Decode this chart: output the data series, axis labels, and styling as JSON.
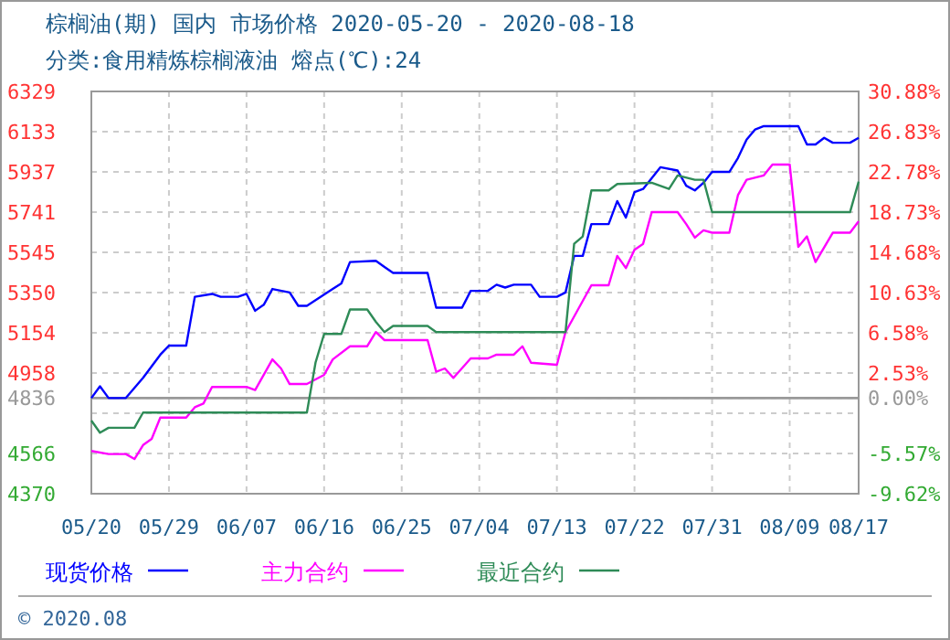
{
  "chart_data": {
    "type": "line",
    "title": "棕榈油(期) 国内 市场价格 2020-05-20 - 2020-08-18",
    "subtitle": "分类:食用精炼棕榈液油 熔点(℃):24",
    "annotations": [
      "© 2020.08"
    ],
    "xlim": [
      "2020-05-20",
      "2020-08-17"
    ],
    "xticks": [
      {
        "value": "2020-05-20",
        "label": "05/20"
      },
      {
        "value": "2020-05-29",
        "label": "05/29"
      },
      {
        "value": "2020-06-07",
        "label": "06/07"
      },
      {
        "value": "2020-06-16",
        "label": "06/16"
      },
      {
        "value": "2020-06-25",
        "label": "06/25"
      },
      {
        "value": "2020-07-04",
        "label": "07/04"
      },
      {
        "value": "2020-07-13",
        "label": "07/13"
      },
      {
        "value": "2020-07-22",
        "label": "07/22"
      },
      {
        "value": "2020-07-31",
        "label": "07/31"
      },
      {
        "value": "2020-08-09",
        "label": "08/09"
      },
      {
        "value": "2020-08-17",
        "label": "08/17"
      }
    ],
    "ylim": [
      4370,
      6329
    ],
    "yticks": [
      4370,
      4566,
      {
        "value": 4762,
        "label": null
      },
      4836,
      4958,
      5154,
      5350,
      5545,
      5741,
      5937,
      6133,
      6329
    ],
    "y2lim": [
      -9.62,
      30.88
    ],
    "y2ticks": [
      {
        "value": -9.62,
        "label": "-9.62%"
      },
      {
        "value": -5.57,
        "label": "-5.57%"
      },
      {
        "value": -1.53,
        "label": null
      },
      {
        "value": 0,
        "label": "0.00%"
      },
      {
        "value": 2.53,
        "label": "2.53%"
      },
      {
        "value": 6.58,
        "label": "6.58%"
      },
      {
        "value": 10.63,
        "label": "10.63%"
      },
      {
        "value": 14.68,
        "label": "14.68%"
      },
      {
        "value": 18.73,
        "label": "18.73%"
      },
      {
        "value": 22.78,
        "label": "22.78%"
      },
      {
        "value": 26.83,
        "label": "26.83%"
      },
      {
        "value": 30.88,
        "label": "30.88%"
      }
    ],
    "ref_lines": [
      {
        "axis": "y",
        "value": 4836,
        "color": "#999999"
      }
    ],
    "grid": true,
    "legend": "bottom",
    "series": [
      {
        "name": "现货价格",
        "color": "#0000ff",
        "x": [
          "2020-05-20",
          "2020-05-21",
          "2020-05-22",
          "2020-05-24",
          "2020-05-26",
          "2020-05-28",
          "2020-05-29",
          "2020-05-31",
          "2020-06-01",
          "2020-06-03",
          "2020-06-04",
          "2020-06-06",
          "2020-06-07",
          "2020-06-08",
          "2020-06-09",
          "2020-06-10",
          "2020-06-12",
          "2020-06-13",
          "2020-06-14",
          "2020-06-17",
          "2020-06-18",
          "2020-06-19",
          "2020-06-22",
          "2020-06-23",
          "2020-06-24",
          "2020-06-28",
          "2020-06-29",
          "2020-07-02",
          "2020-07-03",
          "2020-07-05",
          "2020-07-06",
          "2020-07-07",
          "2020-07-08",
          "2020-07-10",
          "2020-07-11",
          "2020-07-13",
          "2020-07-14",
          "2020-07-15",
          "2020-07-16",
          "2020-07-17",
          "2020-07-19",
          "2020-07-20",
          "2020-07-21",
          "2020-07-22",
          "2020-07-23",
          "2020-07-25",
          "2020-07-27",
          "2020-07-28",
          "2020-07-29",
          "2020-07-30",
          "2020-07-31",
          "2020-08-02",
          "2020-08-03",
          "2020-08-04",
          "2020-08-05",
          "2020-08-06",
          "2020-08-10",
          "2020-08-11",
          "2020-08-12",
          "2020-08-13",
          "2020-08-14",
          "2020-08-16",
          "2020-08-17"
        ],
        "values": [
          4836,
          4893,
          4836,
          4836,
          4934,
          5047,
          5091,
          5091,
          5329,
          5343,
          5329,
          5329,
          5343,
          5261,
          5290,
          5367,
          5350,
          5285,
          5285,
          5367,
          5394,
          5498,
          5504,
          5474,
          5445,
          5445,
          5276,
          5276,
          5358,
          5358,
          5388,
          5374,
          5388,
          5388,
          5329,
          5329,
          5350,
          5528,
          5528,
          5683,
          5683,
          5795,
          5715,
          5839,
          5854,
          5960,
          5944,
          5870,
          5847,
          5884,
          5937,
          5937,
          6005,
          6094,
          6144,
          6160,
          6160,
          6071,
          6071,
          6103,
          6079,
          6079,
          6103
        ]
      },
      {
        "name": "主力合约",
        "color": "#ff00ff",
        "x": [
          "2020-05-20",
          "2020-05-22",
          "2020-05-24",
          "2020-05-25",
          "2020-05-26",
          "2020-05-27",
          "2020-05-28",
          "2020-05-31",
          "2020-06-01",
          "2020-06-02",
          "2020-06-03",
          "2020-06-07",
          "2020-06-08",
          "2020-06-10",
          "2020-06-11",
          "2020-06-12",
          "2020-06-14",
          "2020-06-16",
          "2020-06-17",
          "2020-06-19",
          "2020-06-21",
          "2020-06-22",
          "2020-06-23",
          "2020-06-28",
          "2020-06-29",
          "2020-06-30",
          "2020-07-01",
          "2020-07-03",
          "2020-07-05",
          "2020-07-06",
          "2020-07-08",
          "2020-07-09",
          "2020-07-10",
          "2020-07-13",
          "2020-07-14",
          "2020-07-17",
          "2020-07-19",
          "2020-07-20",
          "2020-07-21",
          "2020-07-22",
          "2020-07-23",
          "2020-07-24",
          "2020-07-27",
          "2020-07-28",
          "2020-07-29",
          "2020-07-30",
          "2020-07-31",
          "2020-08-02",
          "2020-08-03",
          "2020-08-04",
          "2020-08-06",
          "2020-08-07",
          "2020-08-09",
          "2020-08-10",
          "2020-08-11",
          "2020-08-12",
          "2020-08-14",
          "2020-08-16",
          "2020-08-17"
        ],
        "values": [
          4578,
          4563,
          4563,
          4539,
          4607,
          4637,
          4741,
          4741,
          4791,
          4809,
          4890,
          4890,
          4875,
          5024,
          4980,
          4904,
          4904,
          4949,
          5024,
          5088,
          5088,
          5157,
          5118,
          5118,
          4964,
          4980,
          4934,
          5029,
          5029,
          5047,
          5047,
          5088,
          5008,
          4998,
          5157,
          5385,
          5385,
          5528,
          5469,
          5558,
          5587,
          5741,
          5741,
          5683,
          5617,
          5653,
          5641,
          5641,
          5824,
          5899,
          5920,
          5973,
          5973,
          5572,
          5623,
          5498,
          5641,
          5641,
          5697
        ]
      },
      {
        "name": "最近合约",
        "color": "#2e8b57",
        "x": [
          "2020-05-20",
          "2020-05-21",
          "2020-05-22",
          "2020-05-25",
          "2020-05-26",
          "2020-06-14",
          "2020-06-15",
          "2020-06-16",
          "2020-06-18",
          "2020-06-19",
          "2020-06-21",
          "2020-06-22",
          "2020-06-23",
          "2020-06-24",
          "2020-06-28",
          "2020-06-29",
          "2020-07-14",
          "2020-07-15",
          "2020-07-16",
          "2020-07-17",
          "2020-07-19",
          "2020-07-20",
          "2020-07-24",
          "2020-07-26",
          "2020-07-27",
          "2020-07-29",
          "2020-07-30",
          "2020-07-31",
          "2020-08-16",
          "2020-08-17"
        ],
        "values": [
          4726,
          4667,
          4691,
          4691,
          4765,
          4765,
          5008,
          5148,
          5148,
          5267,
          5267,
          5207,
          5157,
          5187,
          5187,
          5157,
          5157,
          5587,
          5623,
          5847,
          5847,
          5878,
          5884,
          5854,
          5920,
          5899,
          5899,
          5741,
          5741,
          5890
        ]
      }
    ]
  }
}
